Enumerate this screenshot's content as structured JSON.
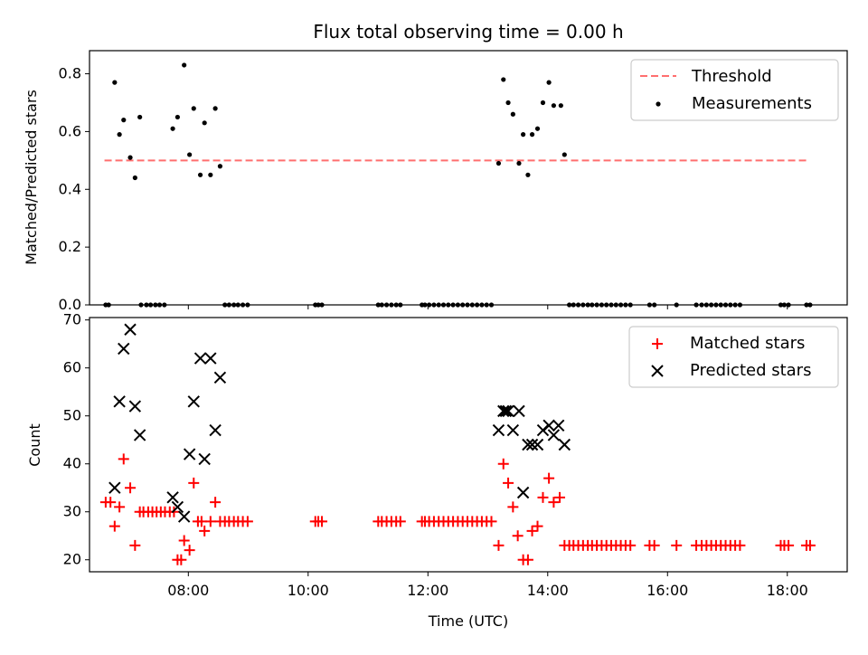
{
  "figure": {
    "title": "Flux total observing time = 0.00 h"
  },
  "colors": {
    "threshold": "#ff6f6f",
    "measurement": "#000000",
    "matched": "#ff0000",
    "predicted": "#000000"
  },
  "chart_data": [
    {
      "type": "scatter",
      "ylabel": "Matched/Predicted stars",
      "xlim": [
        6.35,
        19.0
      ],
      "ylim": [
        0,
        0.88
      ],
      "x_ticks": [
        8,
        10,
        12,
        14,
        16,
        18
      ],
      "y_ticks": [
        0.0,
        0.2,
        0.4,
        0.6,
        0.8
      ],
      "y_tick_labels": [
        "0.0",
        "0.2",
        "0.4",
        "0.6",
        "0.8"
      ],
      "legend": {
        "position": "top-right",
        "entries": [
          "Threshold",
          "Measurements"
        ]
      },
      "threshold": {
        "name": "Threshold",
        "y": 0.5,
        "x": [
          6.6,
          18.33
        ]
      },
      "series": [
        {
          "name": "Measurements",
          "x": [
            6.62,
            6.67,
            6.77,
            6.85,
            6.92,
            7.03,
            7.11,
            7.19,
            7.21,
            7.3,
            7.37,
            7.45,
            7.52,
            7.6,
            7.74,
            7.82,
            7.93,
            8.02,
            8.09,
            8.2,
            8.27,
            8.37,
            8.45,
            8.53,
            8.61,
            8.68,
            8.76,
            8.83,
            8.91,
            8.99,
            10.12,
            10.17,
            10.23,
            11.17,
            11.23,
            11.31,
            11.39,
            11.47,
            11.54,
            11.9,
            11.95,
            12.02,
            12.1,
            12.18,
            12.26,
            12.34,
            12.42,
            12.5,
            12.58,
            12.66,
            12.74,
            12.82,
            12.9,
            12.98,
            13.06,
            13.18,
            13.26,
            13.34,
            13.42,
            13.52,
            13.59,
            13.67,
            13.74,
            13.83,
            13.92,
            14.02,
            14.1,
            14.22,
            14.28,
            14.36,
            14.43,
            14.51,
            14.59,
            14.67,
            14.74,
            14.82,
            14.9,
            14.98,
            15.06,
            15.14,
            15.22,
            15.3,
            15.38,
            15.7,
            15.78,
            16.15,
            16.48,
            16.57,
            16.65,
            16.73,
            16.81,
            16.89,
            16.97,
            17.05,
            17.13,
            17.21,
            17.89,
            17.95,
            18.02,
            18.32,
            18.38
          ],
          "y": [
            0.0,
            0.0,
            0.77,
            0.59,
            0.64,
            0.51,
            0.44,
            0.65,
            0.0,
            0.0,
            0.0,
            0.0,
            0.0,
            0.0,
            0.61,
            0.65,
            0.83,
            0.52,
            0.68,
            0.45,
            0.63,
            0.45,
            0.68,
            0.48,
            0.0,
            0.0,
            0.0,
            0.0,
            0.0,
            0.0,
            0.0,
            0.0,
            0.0,
            0.0,
            0.0,
            0.0,
            0.0,
            0.0,
            0.0,
            0.0,
            0.0,
            0.0,
            0.0,
            0.0,
            0.0,
            0.0,
            0.0,
            0.0,
            0.0,
            0.0,
            0.0,
            0.0,
            0.0,
            0.0,
            0.0,
            0.49,
            0.78,
            0.7,
            0.66,
            0.49,
            0.59,
            0.45,
            0.59,
            0.61,
            0.7,
            0.77,
            0.69,
            0.69,
            0.52,
            0.0,
            0.0,
            0.0,
            0.0,
            0.0,
            0.0,
            0.0,
            0.0,
            0.0,
            0.0,
            0.0,
            0.0,
            0.0,
            0.0,
            0.0,
            0.0,
            0.0,
            0.0,
            0.0,
            0.0,
            0.0,
            0.0,
            0.0,
            0.0,
            0.0,
            0.0,
            0.0,
            0.0,
            0.0,
            0.0,
            0.0,
            0.0
          ]
        }
      ]
    },
    {
      "type": "scatter",
      "xlabel": "Time (UTC)",
      "ylabel": "Count",
      "xlim": [
        6.35,
        19.0
      ],
      "ylim": [
        17.5,
        70.5
      ],
      "x_ticks": [
        8,
        10,
        12,
        14,
        16,
        18
      ],
      "x_tick_labels": [
        "08:00",
        "10:00",
        "12:00",
        "14:00",
        "16:00",
        "18:00"
      ],
      "y_ticks": [
        20,
        30,
        40,
        50,
        60,
        70
      ],
      "y_tick_labels": [
        "20",
        "30",
        "40",
        "50",
        "60",
        "70"
      ],
      "legend": {
        "position": "top-right",
        "entries": [
          "Matched stars",
          "Predicted stars"
        ]
      },
      "series": [
        {
          "name": "Matched stars",
          "marker": "plus",
          "x": [
            6.62,
            6.7,
            6.77,
            6.85,
            6.92,
            7.03,
            7.11,
            7.19,
            7.25,
            7.33,
            7.4,
            7.47,
            7.54,
            7.61,
            7.69,
            7.76,
            7.82,
            7.88,
            7.93,
            8.02,
            8.09,
            8.16,
            8.22,
            8.27,
            8.37,
            8.45,
            8.53,
            8.61,
            8.68,
            8.76,
            8.83,
            8.91,
            8.99,
            10.12,
            10.17,
            10.23,
            11.17,
            11.23,
            11.31,
            11.39,
            11.47,
            11.54,
            11.9,
            11.95,
            12.02,
            12.1,
            12.18,
            12.26,
            12.34,
            12.42,
            12.5,
            12.58,
            12.66,
            12.74,
            12.82,
            12.9,
            12.98,
            13.06,
            13.18,
            13.26,
            13.34,
            13.42,
            13.5,
            13.59,
            13.67,
            13.74,
            13.83,
            13.92,
            14.02,
            14.1,
            14.2,
            14.28,
            14.36,
            14.43,
            14.51,
            14.59,
            14.67,
            14.74,
            14.82,
            14.9,
            14.98,
            15.06,
            15.14,
            15.22,
            15.3,
            15.38,
            15.7,
            15.78,
            16.15,
            16.48,
            16.57,
            16.65,
            16.73,
            16.81,
            16.89,
            16.97,
            17.05,
            17.13,
            17.21,
            17.89,
            17.95,
            18.02,
            18.32,
            18.38
          ],
          "y": [
            32,
            32,
            27,
            31,
            41,
            35,
            23,
            30,
            30,
            30,
            30,
            30,
            30,
            30,
            30,
            30,
            20,
            20,
            24,
            22,
            36,
            28,
            28,
            26,
            28,
            32,
            28,
            28,
            28,
            28,
            28,
            28,
            28,
            28,
            28,
            28,
            28,
            28,
            28,
            28,
            28,
            28,
            28,
            28,
            28,
            28,
            28,
            28,
            28,
            28,
            28,
            28,
            28,
            28,
            28,
            28,
            28,
            28,
            23,
            40,
            36,
            31,
            25,
            20,
            20,
            26,
            27,
            33,
            37,
            32,
            33,
            23,
            23,
            23,
            23,
            23,
            23,
            23,
            23,
            23,
            23,
            23,
            23,
            23,
            23,
            23,
            23,
            23,
            23,
            23,
            23,
            23,
            23,
            23,
            23,
            23,
            23,
            23,
            23,
            23,
            23,
            23,
            23,
            23
          ]
        },
        {
          "name": "Predicted stars",
          "marker": "x",
          "x": [
            6.77,
            6.85,
            6.92,
            7.03,
            7.11,
            7.19,
            7.74,
            7.82,
            7.93,
            8.02,
            8.09,
            8.2,
            8.27,
            8.37,
            8.45,
            8.53,
            13.18,
            13.26,
            13.3,
            13.34,
            13.42,
            13.52,
            13.59,
            13.67,
            13.74,
            13.83,
            13.92,
            14.02,
            14.1,
            14.18,
            14.28
          ],
          "y": [
            35,
            53,
            64,
            68,
            52,
            46,
            33,
            31,
            29,
            42,
            53,
            62,
            41,
            62,
            47,
            58,
            47,
            51,
            51,
            51,
            47,
            51,
            34,
            44,
            44,
            44,
            47,
            48,
            46,
            48,
            44
          ]
        }
      ]
    }
  ]
}
